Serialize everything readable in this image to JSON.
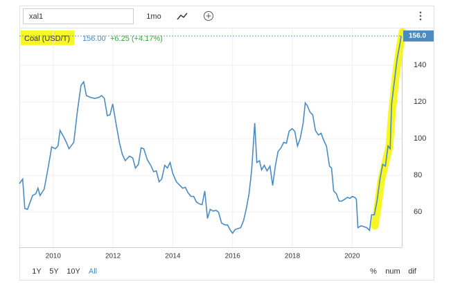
{
  "toolbar": {
    "search": "xal1",
    "interval": "1mo"
  },
  "range_buttons": [
    "1Y",
    "5Y",
    "10Y",
    "All"
  ],
  "mode_buttons": [
    "%",
    "num",
    "dif"
  ],
  "chart_data": {
    "type": "line",
    "legend": {
      "price": "156.00",
      "change": "+6.25 (+4.17%)"
    },
    "last_label": "156.0",
    "xlim": [
      2008.87,
      2021.66
    ],
    "xticks": [
      2010,
      2012,
      2014,
      2016,
      2018,
      2020
    ],
    "ylim": [
      40.8,
      160.5
    ],
    "yticks": [
      60,
      80,
      100,
      120,
      140
    ],
    "grid": true,
    "x": [
      2008.87,
      2008.98,
      2009.05,
      2009.14,
      2009.31,
      2009.42,
      2009.49,
      2009.56,
      2009.7,
      2009.84,
      2009.95,
      2010.07,
      2010.16,
      2010.23,
      2010.35,
      2010.44,
      2010.53,
      2010.69,
      2010.81,
      2010.93,
      2011.02,
      2011.11,
      2011.25,
      2011.39,
      2011.53,
      2011.62,
      2011.71,
      2011.81,
      2011.9,
      2011.99,
      2012.11,
      2012.22,
      2012.31,
      2012.41,
      2012.55,
      2012.66,
      2012.75,
      2012.85,
      2012.94,
      2013.03,
      2013.15,
      2013.26,
      2013.36,
      2013.45,
      2013.54,
      2013.63,
      2013.73,
      2013.82,
      2013.91,
      2014.0,
      2014.12,
      2014.24,
      2014.33,
      2014.42,
      2014.51,
      2014.61,
      2014.7,
      2014.79,
      2014.88,
      2014.98,
      2015.07,
      2015.16,
      2015.25,
      2015.35,
      2015.44,
      2015.53,
      2015.63,
      2015.74,
      2015.83,
      2015.93,
      2016.0,
      2016.09,
      2016.18,
      2016.27,
      2016.37,
      2016.46,
      2016.55,
      2016.64,
      2016.74,
      2016.81,
      2016.9,
      2016.97,
      2017.06,
      2017.15,
      2017.25,
      2017.34,
      2017.43,
      2017.52,
      2017.62,
      2017.71,
      2017.8,
      2017.89,
      2017.99,
      2018.08,
      2018.17,
      2018.26,
      2018.36,
      2018.43,
      2018.5,
      2018.59,
      2018.68,
      2018.77,
      2018.87,
      2018.96,
      2019.05,
      2019.14,
      2019.24,
      2019.31,
      2019.38,
      2019.47,
      2019.56,
      2019.65,
      2019.75,
      2019.84,
      2019.93,
      2020.0,
      2020.09,
      2020.14,
      2020.19,
      2020.3,
      2020.39,
      2020.49,
      2020.58,
      2020.65,
      2020.74,
      2020.83,
      2020.93,
      2021.02,
      2021.11,
      2021.2,
      2021.27,
      2021.32,
      2021.41,
      2021.5,
      2021.6,
      2021.64
    ],
    "series": [
      {
        "name": "Coal (USD/T)",
        "color": "#4a8bc2",
        "values": [
          75.5,
          78,
          62,
          61.5,
          69,
          70,
          73,
          69,
          72.5,
          85,
          95.5,
          94.5,
          96,
          104.5,
          101,
          98,
          94.5,
          98,
          115,
          129,
          131,
          123.5,
          122.5,
          122,
          122.5,
          123.5,
          122,
          112.5,
          113,
          119,
          107.5,
          97.5,
          91.5,
          88,
          90.5,
          89.5,
          84,
          86,
          95,
          94.5,
          88.5,
          85.5,
          82,
          82.5,
          76.5,
          78,
          85.5,
          84,
          87,
          81,
          76.5,
          74.5,
          73,
          73.5,
          70.5,
          68.5,
          68.5,
          65.5,
          64.5,
          64,
          71.5,
          56.5,
          61.5,
          60.5,
          61,
          60,
          54,
          53,
          53,
          50,
          48.5,
          50.5,
          51,
          51.5,
          55.5,
          62,
          70,
          83,
          108.5,
          87,
          88,
          83,
          85.5,
          82.5,
          85,
          74.5,
          85,
          93,
          95,
          98,
          97.5,
          104,
          105.5,
          104,
          96,
          100,
          108.5,
          119.5,
          118,
          114.5,
          113,
          104.5,
          102,
          103,
          99,
          96,
          85,
          84,
          71.5,
          70,
          66,
          66,
          67,
          68,
          67.5,
          68.5,
          68,
          67,
          51.5,
          52.5,
          52,
          51.5,
          50,
          58.5,
          58.5,
          66,
          78,
          86,
          85,
          96,
          94.5,
          119,
          131,
          143,
          152,
          156
        ]
      }
    ]
  }
}
